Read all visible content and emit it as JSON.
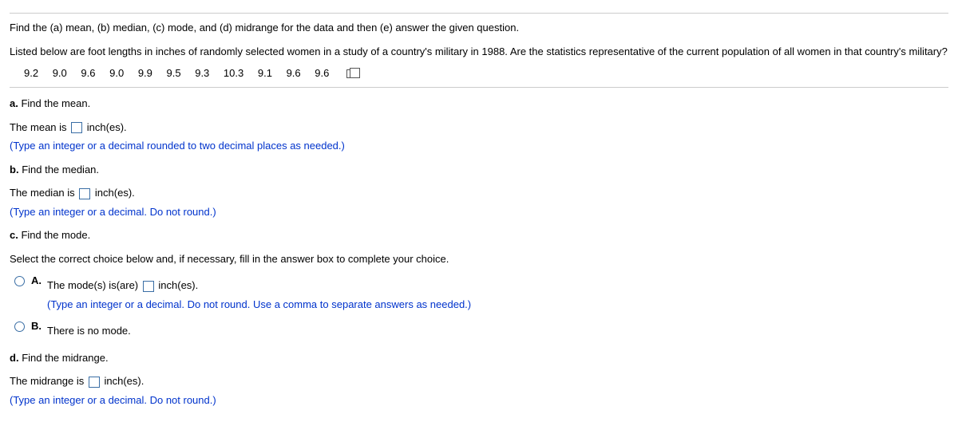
{
  "intro1": "Find the (a) mean, (b) median, (c) mode, and (d) midrange for the data and then (e) answer the given question.",
  "intro2": "Listed below are foot lengths in inches of randomly selected women in a study of a country's military in 1988. Are the statistics representative of the current population of all women in that country's military?",
  "data": [
    "9.2",
    "9.0",
    "9.6",
    "9.0",
    "9.9",
    "9.5",
    "9.3",
    "10.3",
    "9.1",
    "9.6",
    "9.6"
  ],
  "a": {
    "heading": "a.",
    "heading_text": "Find the mean.",
    "sentence_pre": "The mean is",
    "sentence_post": "inch(es).",
    "instruction": "(Type an integer or a decimal rounded to two decimal places as needed.)"
  },
  "b": {
    "heading": "b.",
    "heading_text": "Find the median.",
    "sentence_pre": "The median is",
    "sentence_post": "inch(es).",
    "instruction": "(Type an integer or a decimal. Do not round.)"
  },
  "c": {
    "heading": "c.",
    "heading_text": "Find the mode.",
    "prompt": "Select the correct choice below and, if necessary, fill in the answer box to complete your choice.",
    "optA_label": "A.",
    "optA_pre": "The mode(s) is(are)",
    "optA_post": "inch(es).",
    "optA_instruction": "(Type an integer or a decimal. Do not round. Use a comma to separate answers as needed.)",
    "optB_label": "B.",
    "optB_text": "There is no mode."
  },
  "d": {
    "heading": "d.",
    "heading_text": "Find the midrange.",
    "sentence_pre": "The midrange is",
    "sentence_post": "inch(es).",
    "instruction": "(Type an integer or a decimal. Do not round.)"
  }
}
